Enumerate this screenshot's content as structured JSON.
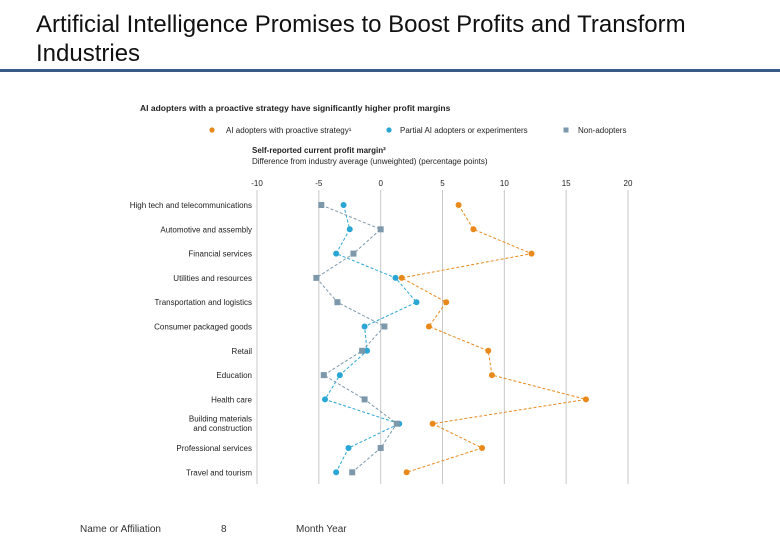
{
  "slide": {
    "title": "Artificial Intelligence Promises to Boost Profits and Transform Industries",
    "footer_left": "Name or Affiliation",
    "footer_page": "8",
    "footer_date": "Month Year"
  },
  "chart_data": {
    "type": "scatter",
    "title": "AI adopters with a proactive strategy have significantly higher profit margins",
    "subtitle": "Self-reported current profit margin²",
    "xlabel": "Difference from industry average (unweighted) (percentage points)",
    "xlim": [
      -10,
      20
    ],
    "xticks": [
      -10,
      -5,
      0,
      5,
      10,
      15,
      20
    ],
    "grid": true,
    "legend_position": "top",
    "categories": [
      "High tech and telecommunications",
      "Automotive and assembly",
      "Financial services",
      "Utilities and resources",
      "Transportation and logistics",
      "Consumer packaged goods",
      "Retail",
      "Education",
      "Health care",
      "Building materials and construction",
      "Professional services",
      "Travel and tourism"
    ],
    "series": [
      {
        "name": "AI adopters with proactive strategy¹",
        "color": "#e8891c",
        "marker": "circle",
        "values": [
          6.3,
          7.5,
          12.2,
          1.7,
          5.3,
          3.9,
          8.7,
          9.0,
          16.6,
          4.2,
          8.2,
          2.1
        ]
      },
      {
        "name": "Partial AI adopters or experimenters",
        "color": "#2aa6d4",
        "marker": "circle",
        "values": [
          -3.0,
          -2.5,
          -3.6,
          1.2,
          2.9,
          -1.3,
          -1.1,
          -3.3,
          -4.5,
          1.5,
          -2.6,
          -3.6
        ]
      },
      {
        "name": "Non-adopters",
        "color": "#7d98ab",
        "marker": "square",
        "values": [
          -4.8,
          0.0,
          -2.2,
          -5.2,
          -3.5,
          0.3,
          -1.5,
          -4.6,
          -1.3,
          1.3,
          0.0,
          -2.3
        ]
      }
    ]
  }
}
